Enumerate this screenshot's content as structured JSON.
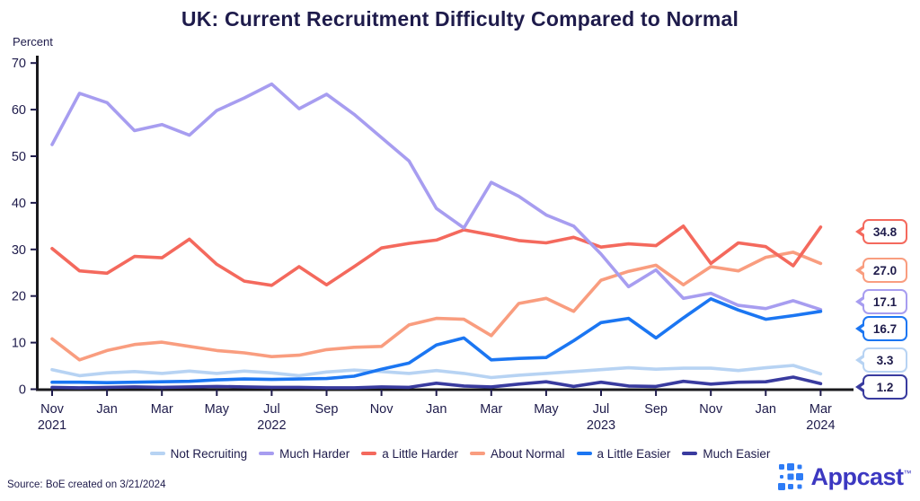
{
  "title": "UK: Current Recruitment Difficulty Compared to Normal",
  "y_axis_label": "Percent",
  "source": "Source: BoE created on 3/21/2024",
  "logo": {
    "text": "Appcast",
    "tm": "™"
  },
  "colors": {
    "text": "#1e1b4b",
    "axis": "#19191c",
    "logo_mark": "#2e7cf6",
    "logo_text": "#3c38c1"
  },
  "chart_data": {
    "type": "line",
    "title": "UK: Current Recruitment Difficulty Compared to Normal",
    "xlabel": "",
    "ylabel": "Percent",
    "ylim": [
      0,
      70
    ],
    "grid": false,
    "legend_position": "bottom",
    "y_ticks": [
      0,
      10,
      20,
      30,
      40,
      50,
      60,
      70
    ],
    "x_tick_labels": [
      {
        "month": "Nov",
        "year": "2021"
      },
      {
        "month": "Jan"
      },
      {
        "month": "Mar"
      },
      {
        "month": "May"
      },
      {
        "month": "Jul",
        "year": "2022"
      },
      {
        "month": "Sep"
      },
      {
        "month": "Nov"
      },
      {
        "month": "Jan"
      },
      {
        "month": "Mar"
      },
      {
        "month": "May"
      },
      {
        "month": "Jul",
        "year": "2023"
      },
      {
        "month": "Sep"
      },
      {
        "month": "Nov"
      },
      {
        "month": "Jan"
      },
      {
        "month": "Mar",
        "year": "2024"
      }
    ],
    "x": [
      "Nov 2021",
      "Dec 2021",
      "Jan 2022",
      "Feb 2022",
      "Mar 2022",
      "Apr 2022",
      "May 2022",
      "Jun 2022",
      "Jul 2022",
      "Aug 2022",
      "Sep 2022",
      "Oct 2022",
      "Nov 2022",
      "Dec 2022",
      "Jan 2023",
      "Feb 2023",
      "Mar 2023",
      "Apr 2023",
      "May 2023",
      "Jun 2023",
      "Jul 2023",
      "Aug 2023",
      "Sep 2023",
      "Oct 2023",
      "Nov 2023",
      "Dec 2023",
      "Jan 2024",
      "Feb 2024",
      "Mar 2024"
    ],
    "series": [
      {
        "name": "Not Recruiting",
        "color": "#b7d3f3",
        "end_label": "3.3",
        "values": [
          4.2,
          2.9,
          3.5,
          3.8,
          3.4,
          3.9,
          3.4,
          3.9,
          3.5,
          2.9,
          3.7,
          4.1,
          3.8,
          3.4,
          4.0,
          3.4,
          2.5,
          3.0,
          3.4,
          3.8,
          4.2,
          4.6,
          4.3,
          4.5,
          4.5,
          4.0,
          4.6,
          5.1,
          3.3
        ]
      },
      {
        "name": "Much Harder",
        "color": "#a79df0",
        "end_label": "17.1",
        "values": [
          52.5,
          63.5,
          61.5,
          55.5,
          56.8,
          54.5,
          59.8,
          62.5,
          65.5,
          60.2,
          63.3,
          59.0,
          54.0,
          49.0,
          38.8,
          34.6,
          44.4,
          41.4,
          37.4,
          35.0,
          29.0,
          22.0,
          25.6,
          19.5,
          20.6,
          18.0,
          17.3,
          19.0,
          17.1
        ]
      },
      {
        "name": "a Little Harder",
        "color": "#f4695d",
        "end_label": "34.8",
        "values": [
          30.2,
          25.4,
          24.9,
          28.5,
          28.2,
          32.2,
          26.8,
          23.2,
          22.3,
          26.3,
          22.4,
          26.3,
          30.3,
          31.3,
          32.0,
          34.2,
          33.1,
          31.9,
          31.4,
          32.6,
          30.5,
          31.2,
          30.8,
          35.0,
          27.0,
          31.4,
          30.6,
          26.5,
          34.8
        ]
      },
      {
        "name": "About Normal",
        "color": "#f99d7f",
        "end_label": "27.0",
        "values": [
          10.8,
          6.3,
          8.3,
          9.6,
          10.1,
          9.2,
          8.3,
          7.8,
          7.0,
          7.3,
          8.5,
          9.0,
          9.2,
          13.8,
          15.2,
          15.0,
          11.5,
          18.4,
          19.5,
          16.7,
          23.4,
          25.3,
          26.6,
          22.4,
          26.3,
          25.4,
          28.3,
          29.4,
          27.0
        ]
      },
      {
        "name": "a Little Easier",
        "color": "#1b76f2",
        "end_label": "16.7",
        "values": [
          1.5,
          1.5,
          1.4,
          1.5,
          1.6,
          1.7,
          2.0,
          2.2,
          2.1,
          2.2,
          2.3,
          2.8,
          4.3,
          5.6,
          9.5,
          11.0,
          6.3,
          6.6,
          6.8,
          10.4,
          14.3,
          15.2,
          11.0,
          15.3,
          19.4,
          17.0,
          15.0,
          15.8,
          16.7
        ]
      },
      {
        "name": "Much Easier",
        "color": "#393b9f",
        "end_label": "1.2",
        "values": [
          0.4,
          0.3,
          0.4,
          0.5,
          0.4,
          0.5,
          0.6,
          0.5,
          0.4,
          0.4,
          0.3,
          0.3,
          0.5,
          0.4,
          1.3,
          0.7,
          0.5,
          1.1,
          1.6,
          0.6,
          1.5,
          0.7,
          0.6,
          1.7,
          1.1,
          1.5,
          1.6,
          2.6,
          1.2
        ]
      }
    ]
  }
}
